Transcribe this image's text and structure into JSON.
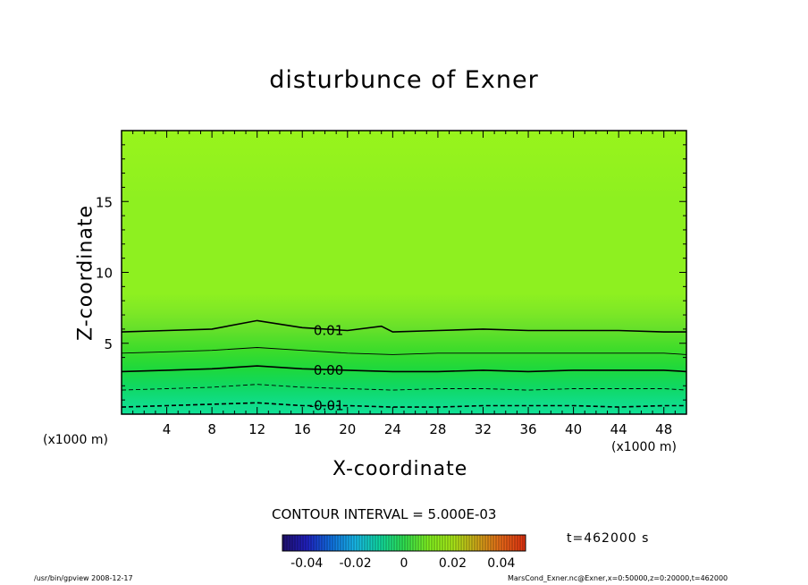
{
  "chart_data": {
    "type": "contour",
    "title": "disturbunce of Exner",
    "xlabel": "X-coordinate",
    "ylabel": "Z-coordinate",
    "x_unit_label": "(x1000 m)",
    "xlim": [
      0,
      50
    ],
    "ylim": [
      0,
      20
    ],
    "x_ticks": [
      4,
      8,
      12,
      16,
      20,
      24,
      28,
      32,
      36,
      40,
      44,
      48
    ],
    "y_ticks": [
      5,
      10,
      15
    ],
    "contour_interval_text": "CONTOUR INTERVAL = 5.000E-03",
    "contour_interval": 0.005,
    "contour_labels": [
      {
        "text": "0.01",
        "value": 0.01,
        "x": 17.0,
        "z": 5.9
      },
      {
        "text": "0.00",
        "value": 0.0,
        "x": 17.0,
        "z": 3.1
      },
      {
        "text": "-0.01",
        "value": -0.01,
        "x": 16.6,
        "z": 0.6
      }
    ],
    "contours": [
      {
        "value": 0.01,
        "style": "solid",
        "bold": true,
        "points": [
          [
            0,
            5.8
          ],
          [
            4,
            5.9
          ],
          [
            8,
            6.0
          ],
          [
            12,
            6.6
          ],
          [
            16,
            6.1
          ],
          [
            20,
            5.9
          ],
          [
            23,
            6.2
          ],
          [
            24,
            5.8
          ],
          [
            28,
            5.9
          ],
          [
            32,
            6.0
          ],
          [
            36,
            5.9
          ],
          [
            40,
            5.9
          ],
          [
            44,
            5.9
          ],
          [
            48,
            5.8
          ],
          [
            50,
            5.8
          ]
        ]
      },
      {
        "value": 0.005,
        "style": "solid",
        "bold": false,
        "points": [
          [
            0,
            4.3
          ],
          [
            4,
            4.4
          ],
          [
            8,
            4.5
          ],
          [
            12,
            4.7
          ],
          [
            16,
            4.5
          ],
          [
            20,
            4.3
          ],
          [
            24,
            4.2
          ],
          [
            28,
            4.3
          ],
          [
            32,
            4.3
          ],
          [
            36,
            4.3
          ],
          [
            40,
            4.3
          ],
          [
            44,
            4.3
          ],
          [
            48,
            4.3
          ],
          [
            50,
            4.2
          ]
        ]
      },
      {
        "value": 0.0,
        "style": "solid",
        "bold": true,
        "points": [
          [
            0,
            3.0
          ],
          [
            4,
            3.1
          ],
          [
            8,
            3.2
          ],
          [
            12,
            3.4
          ],
          [
            16,
            3.2
          ],
          [
            20,
            3.1
          ],
          [
            24,
            3.0
          ],
          [
            28,
            3.0
          ],
          [
            32,
            3.1
          ],
          [
            36,
            3.0
          ],
          [
            40,
            3.1
          ],
          [
            44,
            3.1
          ],
          [
            48,
            3.1
          ],
          [
            50,
            3.0
          ]
        ]
      },
      {
        "value": -0.005,
        "style": "dashed",
        "bold": false,
        "points": [
          [
            0,
            1.7
          ],
          [
            4,
            1.8
          ],
          [
            8,
            1.9
          ],
          [
            12,
            2.1
          ],
          [
            16,
            1.9
          ],
          [
            20,
            1.8
          ],
          [
            24,
            1.7
          ],
          [
            28,
            1.8
          ],
          [
            32,
            1.8
          ],
          [
            36,
            1.7
          ],
          [
            40,
            1.8
          ],
          [
            44,
            1.8
          ],
          [
            48,
            1.8
          ],
          [
            50,
            1.7
          ]
        ]
      },
      {
        "value": -0.01,
        "style": "dashed",
        "bold": true,
        "points": [
          [
            0,
            0.5
          ],
          [
            4,
            0.6
          ],
          [
            8,
            0.7
          ],
          [
            12,
            0.8
          ],
          [
            16,
            0.6
          ],
          [
            20,
            0.6
          ],
          [
            24,
            0.5
          ],
          [
            28,
            0.5
          ],
          [
            32,
            0.6
          ],
          [
            36,
            0.6
          ],
          [
            40,
            0.6
          ],
          [
            44,
            0.5
          ],
          [
            48,
            0.6
          ],
          [
            50,
            0.6
          ]
        ]
      }
    ],
    "fill_bands": [
      {
        "z": 20.0,
        "color": "#98f41c"
      },
      {
        "z": 15.0,
        "color": "#8ef020"
      },
      {
        "z": 8.5,
        "color": "#8ef020"
      },
      {
        "z": 7.2,
        "color": "#7ee826"
      },
      {
        "z": 6.0,
        "color": "#66e02a"
      },
      {
        "z": 4.5,
        "color": "#3cdc2a"
      },
      {
        "z": 3.2,
        "color": "#1ed83c"
      },
      {
        "z": 2.0,
        "color": "#10d860"
      },
      {
        "z": 0.9,
        "color": "#10dc84"
      },
      {
        "z": 0.0,
        "color": "#10e096"
      }
    ],
    "colorbar": {
      "tick_labels": [
        "-0.04",
        "-0.02",
        "0",
        "0.02",
        "0.04"
      ],
      "range": [
        -0.05,
        0.05
      ],
      "colors": [
        "#20106e",
        "#2020c0",
        "#1070e0",
        "#18b8e8",
        "#10d8a0",
        "#30e050",
        "#80f020",
        "#a8e818",
        "#d0a818",
        "#e86818",
        "#e03010"
      ]
    },
    "time_label": "t=462000 s"
  },
  "footer": {
    "left": "/usr/bin/gpview   2008-12-17",
    "right": "MarsCond_Exner.nc@Exner,x=0:50000,z=0:20000,t=462000"
  }
}
